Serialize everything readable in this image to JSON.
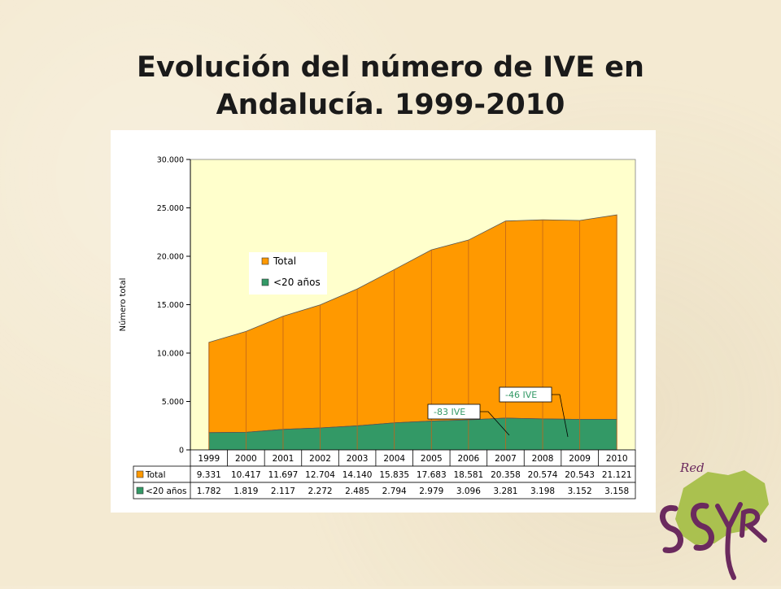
{
  "slide": {
    "title_line1": "Evolución del número de IVE en",
    "title_line2": "Andalucía. 1999-2010"
  },
  "logo": {
    "label": "Red",
    "colors": {
      "map": "#9dbb3a",
      "letters": "#6b2a5e"
    }
  },
  "chart_data": {
    "type": "area",
    "ylabel": "Número total",
    "ylim": [
      0,
      30000
    ],
    "yticks": [
      {
        "value": 0,
        "label": "0"
      },
      {
        "value": 5000,
        "label": "5.000"
      },
      {
        "value": 10000,
        "label": "10.000"
      },
      {
        "value": 15000,
        "label": "15.000"
      },
      {
        "value": 20000,
        "label": "20.000"
      },
      {
        "value": 25000,
        "label": "25.000"
      },
      {
        "value": 30000,
        "label": "30.000"
      }
    ],
    "categories": [
      "1999",
      "2000",
      "2001",
      "2002",
      "2003",
      "2004",
      "2005",
      "2006",
      "2007",
      "2008",
      "2009",
      "2010"
    ],
    "stacked": true,
    "series": [
      {
        "name": "<20 años",
        "color": "#339966",
        "values": [
          1782,
          1819,
          2117,
          2272,
          2485,
          2794,
          2979,
          3096,
          3281,
          3198,
          3152,
          3158
        ],
        "labels": [
          "1.782",
          "1.819",
          "2.117",
          "2.272",
          "2.485",
          "2.794",
          "2.979",
          "3.096",
          "3.281",
          "3.198",
          "3.152",
          "3.158"
        ]
      },
      {
        "name": "Total",
        "color": "#ff9900",
        "values": [
          9331,
          10417,
          11697,
          12704,
          14140,
          15835,
          17683,
          18581,
          20358,
          20574,
          20543,
          21121
        ],
        "labels": [
          "9.331",
          "10.417",
          "11.697",
          "12.704",
          "14.140",
          "15.835",
          "17.683",
          "18.581",
          "20.358",
          "20.574",
          "20.543",
          "21.121"
        ]
      }
    ],
    "legend": {
      "placement": "top-left",
      "order": [
        "Total",
        "<20 años"
      ]
    },
    "annotations": [
      {
        "text": "-83 IVE",
        "color": "#339966",
        "year": "2007"
      },
      {
        "text": "-46 IVE",
        "color": "#339966",
        "year": "2009"
      }
    ],
    "plot_background": "#ffffcc",
    "data_table": true
  }
}
